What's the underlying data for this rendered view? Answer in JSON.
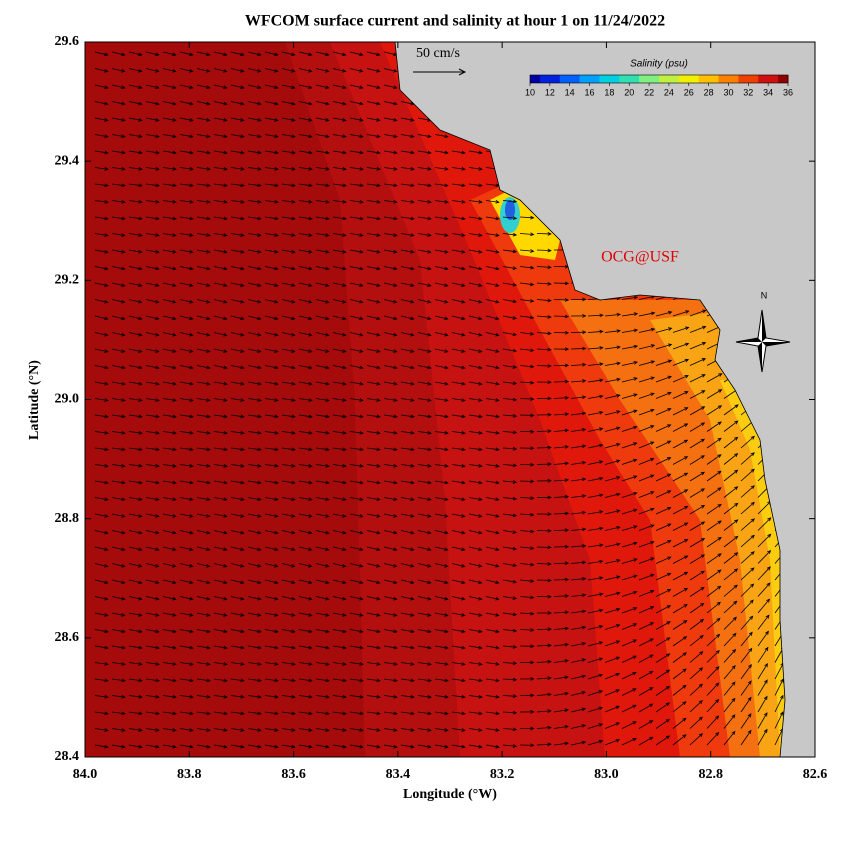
{
  "title": "WFCOM surface current and salinity at hour 1 on 11/24/2022",
  "map": {
    "xlabel": "Longitude (°W)",
    "ylabel": "Latitude (°N)",
    "xlim": [
      84.0,
      82.6
    ],
    "ylim": [
      28.4,
      29.6
    ],
    "xticks": [
      {
        "value": 84.0,
        "label": "84.0"
      },
      {
        "value": 83.8,
        "label": "83.8"
      },
      {
        "value": 83.6,
        "label": "83.6"
      },
      {
        "value": 83.4,
        "label": "83.4"
      },
      {
        "value": 83.2,
        "label": "83.2"
      },
      {
        "value": 83.0,
        "label": "83.0"
      },
      {
        "value": 82.8,
        "label": "82.8"
      },
      {
        "value": 82.6,
        "label": "82.6"
      }
    ],
    "yticks": [
      {
        "value": 28.4,
        "label": "28.4"
      },
      28.6,
      28.8,
      {
        "value": 29.0,
        "label": "29.0"
      },
      29.2,
      29.4,
      29.6
    ]
  },
  "colorbar": {
    "label": "Salinity (psu)",
    "lim": [
      10,
      36
    ],
    "ticks": [
      10,
      12,
      14,
      16,
      18,
      20,
      22,
      24,
      26,
      28,
      30,
      32,
      34,
      36
    ]
  },
  "scale_label": "50 cm/s",
  "watermark": "OCG@USF",
  "compass": "N"
}
